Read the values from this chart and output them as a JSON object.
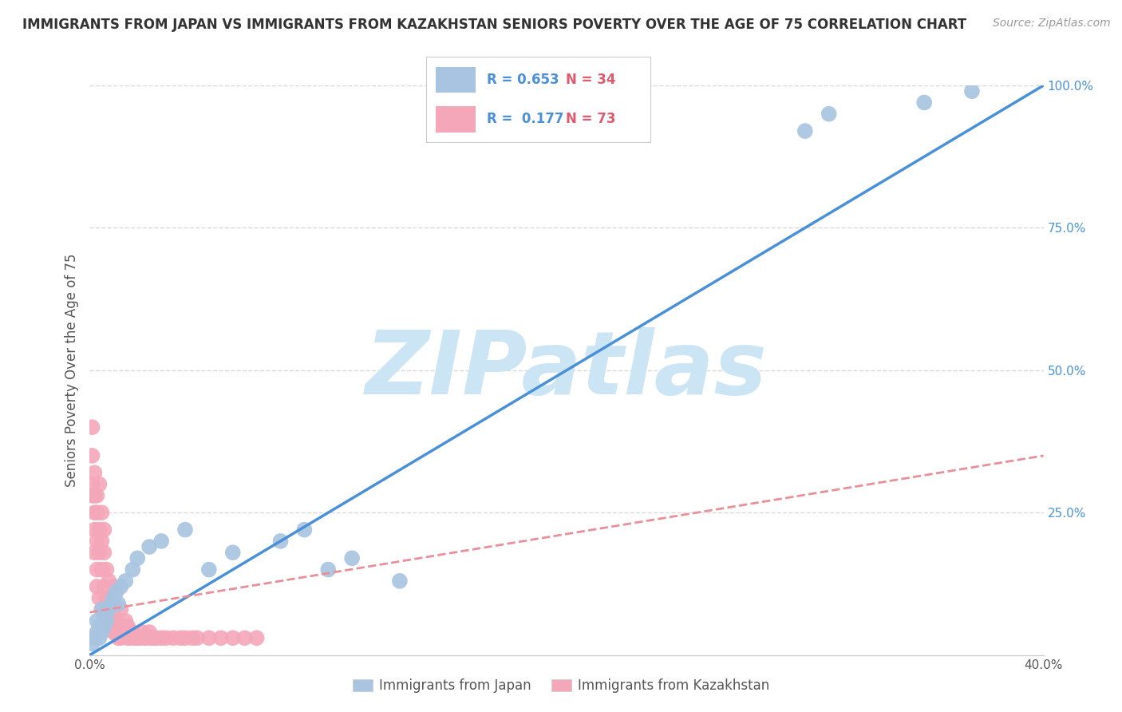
{
  "title": "IMMIGRANTS FROM JAPAN VS IMMIGRANTS FROM KAZAKHSTAN SENIORS POVERTY OVER THE AGE OF 75 CORRELATION CHART",
  "source": "Source: ZipAtlas.com",
  "ylabel": "Seniors Poverty Over the Age of 75",
  "xlim": [
    0.0,
    0.4
  ],
  "ylim": [
    0.0,
    1.0
  ],
  "xticks": [
    0.0,
    0.1,
    0.2,
    0.3,
    0.4
  ],
  "xticklabels": [
    "0.0%",
    "",
    "",
    "",
    "40.0%"
  ],
  "yticks": [
    0.0,
    0.25,
    0.5,
    0.75,
    1.0
  ],
  "yticklabels": [
    "",
    "25.0%",
    "50.0%",
    "75.0%",
    "100.0%"
  ],
  "japan_color": "#a8c4e0",
  "kazakhstan_color": "#f4a7b9",
  "japan_R": 0.653,
  "japan_N": 34,
  "kazakhstan_R": 0.177,
  "kazakhstan_N": 73,
  "japan_line_color": "#4a90d9",
  "kazakhstan_line_color": "#e8909a",
  "watermark": "ZIPatlas",
  "watermark_color": "#cce5f5",
  "background_color": "#ffffff",
  "grid_color": "#d8d8d8",
  "japan_x": [
    0.001,
    0.002,
    0.003,
    0.003,
    0.004,
    0.004,
    0.005,
    0.005,
    0.006,
    0.006,
    0.007,
    0.008,
    0.009,
    0.01,
    0.011,
    0.012,
    0.013,
    0.015,
    0.018,
    0.02,
    0.025,
    0.03,
    0.04,
    0.05,
    0.06,
    0.08,
    0.09,
    0.1,
    0.11,
    0.13,
    0.3,
    0.31,
    0.35,
    0.37
  ],
  "japan_y": [
    0.02,
    0.03,
    0.04,
    0.06,
    0.03,
    0.05,
    0.04,
    0.08,
    0.05,
    0.07,
    0.06,
    0.08,
    0.09,
    0.1,
    0.11,
    0.09,
    0.12,
    0.13,
    0.15,
    0.17,
    0.19,
    0.2,
    0.22,
    0.15,
    0.18,
    0.2,
    0.22,
    0.15,
    0.17,
    0.13,
    0.92,
    0.95,
    0.97,
    0.99
  ],
  "kazakhstan_x": [
    0.001,
    0.001,
    0.001,
    0.001,
    0.002,
    0.002,
    0.002,
    0.002,
    0.002,
    0.003,
    0.003,
    0.003,
    0.003,
    0.003,
    0.004,
    0.004,
    0.004,
    0.004,
    0.005,
    0.005,
    0.005,
    0.005,
    0.006,
    0.006,
    0.006,
    0.006,
    0.007,
    0.007,
    0.007,
    0.008,
    0.008,
    0.008,
    0.009,
    0.009,
    0.01,
    0.01,
    0.01,
    0.011,
    0.011,
    0.012,
    0.012,
    0.013,
    0.013,
    0.014,
    0.015,
    0.015,
    0.016,
    0.016,
    0.017,
    0.017,
    0.018,
    0.019,
    0.02,
    0.021,
    0.022,
    0.023,
    0.024,
    0.025,
    0.026,
    0.027,
    0.028,
    0.03,
    0.032,
    0.035,
    0.038,
    0.04,
    0.043,
    0.045,
    0.05,
    0.055,
    0.06,
    0.065,
    0.07
  ],
  "kazakhstan_y": [
    0.3,
    0.35,
    0.4,
    0.28,
    0.22,
    0.28,
    0.32,
    0.18,
    0.25,
    0.2,
    0.15,
    0.25,
    0.28,
    0.12,
    0.18,
    0.22,
    0.3,
    0.1,
    0.15,
    0.2,
    0.25,
    0.08,
    0.12,
    0.18,
    0.22,
    0.08,
    0.1,
    0.15,
    0.07,
    0.09,
    0.13,
    0.06,
    0.08,
    0.05,
    0.04,
    0.07,
    0.12,
    0.04,
    0.06,
    0.03,
    0.05,
    0.03,
    0.08,
    0.05,
    0.04,
    0.06,
    0.03,
    0.05,
    0.03,
    0.04,
    0.04,
    0.03,
    0.03,
    0.03,
    0.04,
    0.03,
    0.03,
    0.04,
    0.03,
    0.03,
    0.03,
    0.03,
    0.03,
    0.03,
    0.03,
    0.03,
    0.03,
    0.03,
    0.03,
    0.03,
    0.03,
    0.03,
    0.03
  ],
  "japan_line_x0": 0.0,
  "japan_line_y0": 0.0,
  "japan_line_x1": 0.4,
  "japan_line_y1": 1.0,
  "kaz_line_x0": 0.0,
  "kaz_line_y0": 0.075,
  "kaz_line_x1": 0.4,
  "kaz_line_y1": 0.35
}
